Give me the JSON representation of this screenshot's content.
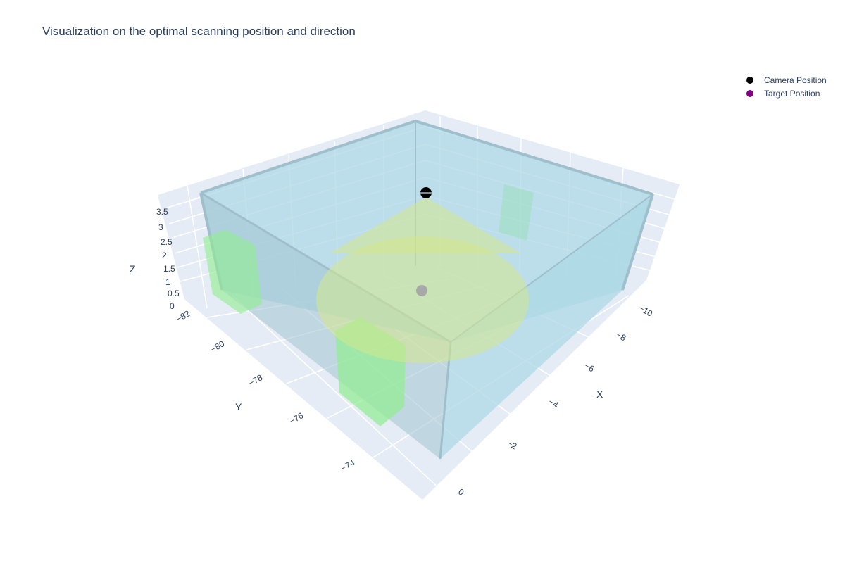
{
  "title": "Visualization on the optimal scanning position and direction",
  "chart_data": {
    "type": "scatter3d",
    "title": "Visualization on the optimal scanning position and direction",
    "axes": {
      "x": {
        "label": "X",
        "ticks": [
          "−10",
          "−8",
          "−6",
          "−4",
          "−2",
          "0"
        ],
        "range": [
          0,
          -10.8
        ]
      },
      "y": {
        "label": "Y",
        "ticks": [
          "−82",
          "−80",
          "−78",
          "−76",
          "−74"
        ],
        "range": [
          -82.5,
          -72.5
        ]
      },
      "z": {
        "label": "Z",
        "ticks": [
          "0",
          "0.5",
          "1",
          "1.5",
          "2",
          "2.5",
          "3",
          "3.5"
        ],
        "range": [
          0,
          3.7
        ]
      }
    },
    "grid": true,
    "legend": {
      "placement": "top-right",
      "entries": [
        {
          "name": "Camera Position",
          "color": "#000000"
        },
        {
          "name": "Target Position",
          "color": "#800080"
        }
      ]
    },
    "room": {
      "x": [
        0,
        -10.5
      ],
      "y": [
        -82,
        -72.5
      ],
      "z": [
        0,
        3.5
      ],
      "color": "#add8e6"
    },
    "cone": {
      "color": "#d4e88c"
    },
    "obstacles_color": "#90ee90"
  }
}
